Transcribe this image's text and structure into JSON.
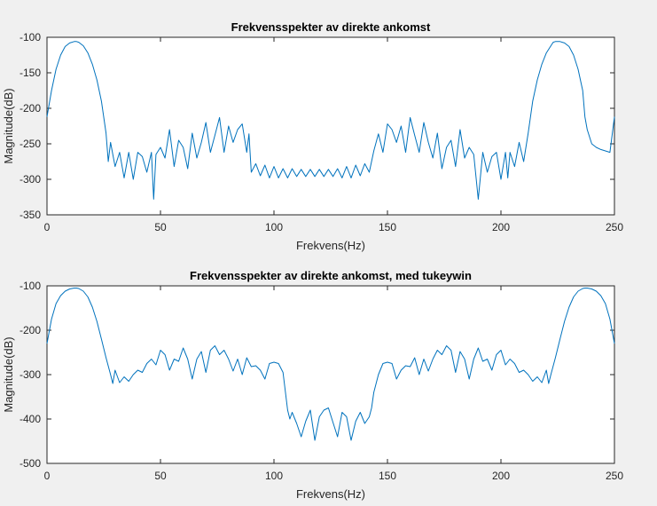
{
  "chart_data": [
    {
      "type": "line",
      "title": "Frekvensspekter av direkte ankomst",
      "xlabel": "Frekvens(Hz)",
      "ylabel": "Magnitude(dB)",
      "xlim": [
        0,
        250
      ],
      "ylim": [
        -350,
        -100
      ],
      "xticks": [
        0,
        50,
        100,
        150,
        200,
        250
      ],
      "yticks": [
        -350,
        -300,
        -250,
        -200,
        -150,
        -100
      ],
      "grid": false,
      "series": [
        {
          "color": "#0072BD",
          "x": [
            0,
            2,
            4,
            6,
            8,
            10,
            12,
            13,
            14,
            16,
            18,
            20,
            22,
            24,
            26,
            27,
            28,
            30,
            32,
            34,
            36,
            38,
            40,
            42,
            44,
            46,
            47,
            48,
            50,
            52,
            54,
            56,
            58,
            60,
            62,
            64,
            66,
            68,
            70,
            72,
            74,
            76,
            78,
            80,
            82,
            84,
            86,
            88,
            89,
            90,
            92,
            94,
            96,
            98,
            100,
            102,
            104,
            106,
            108,
            110,
            112,
            114,
            116,
            118,
            120,
            122,
            124,
            126,
            128,
            130,
            132,
            134,
            136,
            138,
            140,
            142,
            144,
            146,
            148,
            150,
            152,
            154,
            156,
            158,
            160,
            162,
            164,
            166,
            168,
            170,
            172,
            174,
            176,
            178,
            180,
            182,
            184,
            186,
            188,
            190,
            192,
            194,
            196,
            198,
            200,
            202,
            203,
            204,
            206,
            208,
            210,
            212,
            214,
            216,
            218,
            220,
            222,
            223,
            224,
            226,
            228,
            230,
            232,
            234,
            236,
            237,
            238,
            240,
            242,
            244,
            246,
            248,
            250
          ],
          "y": [
            -212,
            -175,
            -145,
            -125,
            -113,
            -108,
            -106,
            -106,
            -107,
            -112,
            -122,
            -138,
            -160,
            -190,
            -235,
            -275,
            -248,
            -282,
            -262,
            -298,
            -262,
            -300,
            -262,
            -268,
            -290,
            -262,
            -328,
            -265,
            -255,
            -270,
            -230,
            -282,
            -245,
            -255,
            -285,
            -235,
            -270,
            -248,
            -220,
            -262,
            -238,
            -213,
            -262,
            -225,
            -248,
            -230,
            -222,
            -262,
            -236,
            -290,
            -278,
            -295,
            -280,
            -298,
            -282,
            -298,
            -285,
            -298,
            -285,
            -296,
            -286,
            -296,
            -286,
            -296,
            -286,
            -296,
            -286,
            -296,
            -285,
            -298,
            -282,
            -298,
            -280,
            -295,
            -278,
            -290,
            -260,
            -236,
            -262,
            -222,
            -230,
            -248,
            -225,
            -262,
            -213,
            -238,
            -262,
            -220,
            -248,
            -270,
            -235,
            -285,
            -255,
            -245,
            -282,
            -230,
            -270,
            -255,
            -265,
            -328,
            -262,
            -290,
            -268,
            -262,
            -300,
            -262,
            -298,
            -262,
            -282,
            -248,
            -275,
            -235,
            -190,
            -160,
            -138,
            -122,
            -112,
            -107,
            -106,
            -106,
            -108,
            -113,
            -125,
            -145,
            -175,
            -212,
            -230,
            -250,
            -255,
            -258,
            -260,
            -262,
            -212
          ]
        }
      ]
    },
    {
      "type": "line",
      "title": "Frekvensspekter av direkte ankomst, med tukeywin",
      "xlabel": "Frekvens(Hz)",
      "ylabel": "Magnitude(dB)",
      "xlim": [
        0,
        250
      ],
      "ylim": [
        -500,
        -100
      ],
      "xticks": [
        0,
        50,
        100,
        150,
        200,
        250
      ],
      "yticks": [
        -500,
        -400,
        -300,
        -200,
        -100
      ],
      "grid": false,
      "series": [
        {
          "color": "#0072BD",
          "x": [
            0,
            2,
            4,
            6,
            8,
            10,
            12,
            13,
            14,
            16,
            18,
            20,
            22,
            24,
            26,
            28,
            29,
            30,
            32,
            34,
            36,
            38,
            40,
            42,
            44,
            46,
            48,
            50,
            52,
            54,
            56,
            58,
            60,
            62,
            64,
            66,
            68,
            70,
            72,
            74,
            76,
            78,
            80,
            82,
            84,
            86,
            88,
            90,
            92,
            94,
            96,
            98,
            100,
            102,
            104,
            106,
            107,
            108,
            110,
            112,
            114,
            116,
            118,
            120,
            122,
            124,
            126,
            128,
            130,
            132,
            134,
            136,
            138,
            140,
            142,
            143,
            144,
            146,
            148,
            150,
            152,
            154,
            156,
            158,
            160,
            162,
            164,
            166,
            168,
            170,
            172,
            174,
            176,
            178,
            180,
            182,
            184,
            186,
            188,
            190,
            192,
            194,
            196,
            198,
            200,
            202,
            204,
            206,
            208,
            210,
            212,
            214,
            216,
            218,
            220,
            221,
            222,
            224,
            226,
            228,
            230,
            232,
            234,
            236,
            237,
            238,
            240,
            242,
            244,
            246,
            248,
            250
          ],
          "y": [
            -230,
            -175,
            -140,
            -122,
            -112,
            -107,
            -105,
            -105,
            -106,
            -112,
            -125,
            -148,
            -180,
            -220,
            -262,
            -300,
            -320,
            -290,
            -318,
            -305,
            -315,
            -300,
            -290,
            -295,
            -275,
            -265,
            -278,
            -245,
            -255,
            -290,
            -265,
            -270,
            -240,
            -265,
            -310,
            -265,
            -248,
            -295,
            -245,
            -235,
            -255,
            -245,
            -265,
            -292,
            -265,
            -300,
            -262,
            -282,
            -280,
            -290,
            -310,
            -275,
            -272,
            -275,
            -295,
            -380,
            -400,
            -385,
            -410,
            -440,
            -405,
            -380,
            -448,
            -395,
            -380,
            -375,
            -408,
            -440,
            -385,
            -395,
            -448,
            -405,
            -385,
            -410,
            -395,
            -375,
            -340,
            -300,
            -275,
            -272,
            -275,
            -310,
            -290,
            -280,
            -282,
            -262,
            -300,
            -265,
            -292,
            -265,
            -245,
            -255,
            -235,
            -245,
            -295,
            -248,
            -265,
            -310,
            -265,
            -240,
            -270,
            -265,
            -290,
            -255,
            -245,
            -278,
            -265,
            -275,
            -295,
            -290,
            -300,
            -315,
            -305,
            -318,
            -290,
            -320,
            -300,
            -262,
            -220,
            -180,
            -148,
            -125,
            -112,
            -106,
            -105,
            -105,
            -107,
            -112,
            -122,
            -140,
            -175,
            -230
          ]
        }
      ]
    }
  ]
}
